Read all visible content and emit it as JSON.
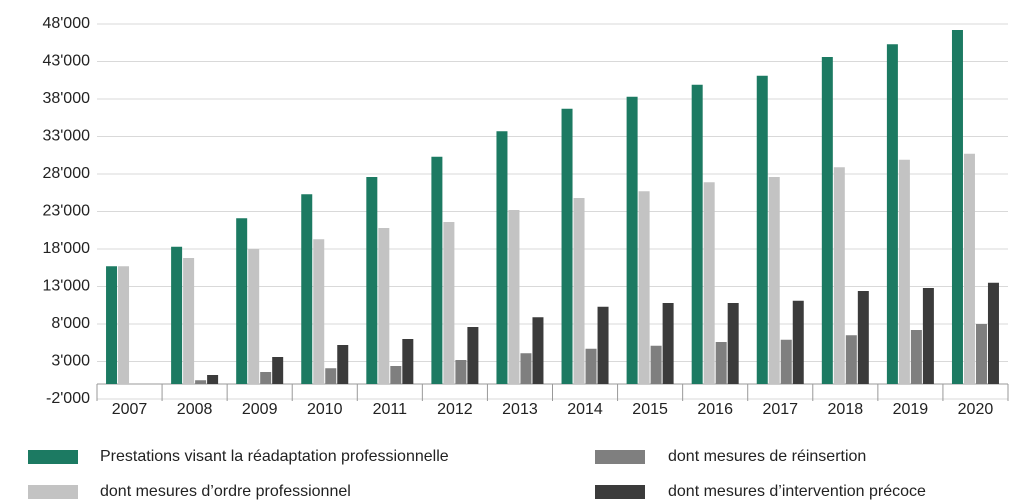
{
  "chart_data": {
    "type": "bar",
    "categories": [
      "2007",
      "2008",
      "2009",
      "2010",
      "2011",
      "2012",
      "2013",
      "2014",
      "2015",
      "2016",
      "2017",
      "2018",
      "2019",
      "2020"
    ],
    "series": [
      {
        "name": "Prestations visant la réadaptation professionnelle",
        "color": "#1c7a62",
        "values": [
          15700,
          18300,
          22100,
          25300,
          27600,
          30300,
          33700,
          36700,
          38300,
          39900,
          41100,
          43600,
          45300,
          47200
        ]
      },
      {
        "name": "dont mesures d’ordre professionnel",
        "color": "#c3c3c3",
        "values": [
          15700,
          16800,
          18000,
          19300,
          20800,
          21600,
          23200,
          24800,
          25700,
          26900,
          27600,
          28900,
          29900,
          30700
        ]
      },
      {
        "name": "dont mesures de réinsertion",
        "color": "#7f7f7f",
        "values": [
          null,
          500,
          1600,
          2100,
          2400,
          3200,
          4100,
          4700,
          5100,
          5600,
          5900,
          6500,
          7200,
          8000
        ]
      },
      {
        "name": "dont mesures d’intervention précoce",
        "color": "#3b3b3b",
        "values": [
          null,
          1200,
          3600,
          5200,
          6000,
          7600,
          8900,
          10300,
          10800,
          10800,
          11100,
          12400,
          12800,
          13500
        ]
      }
    ],
    "ylim": [
      -2000,
      48000
    ],
    "yticks": [
      {
        "value": -2000,
        "label": "-2'000"
      },
      {
        "value": 3000,
        "label": "3'000"
      },
      {
        "value": 8000,
        "label": "8'000"
      },
      {
        "value": 13000,
        "label": "13'000"
      },
      {
        "value": 18000,
        "label": "18'000"
      },
      {
        "value": 23000,
        "label": "23'000"
      },
      {
        "value": 28000,
        "label": "28'000"
      },
      {
        "value": 33000,
        "label": "33'000"
      },
      {
        "value": 38000,
        "label": "38'000"
      },
      {
        "value": 43000,
        "label": "43'000"
      },
      {
        "value": 48000,
        "label": "48'000"
      }
    ],
    "grid": true
  }
}
